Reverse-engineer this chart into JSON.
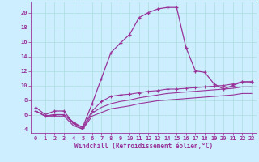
{
  "xlabel": "Windchill (Refroidissement éolien,°C)",
  "background_color": "#cceeff",
  "grid_color": "#aadddd",
  "line_color": "#993399",
  "xlim": [
    -0.5,
    23.5
  ],
  "ylim": [
    3.5,
    21.5
  ],
  "yticks": [
    4,
    6,
    8,
    10,
    12,
    14,
    16,
    18,
    20
  ],
  "xticks": [
    0,
    1,
    2,
    3,
    4,
    5,
    6,
    7,
    8,
    9,
    10,
    11,
    12,
    13,
    14,
    15,
    16,
    17,
    18,
    19,
    20,
    21,
    22,
    23
  ],
  "line1_x": [
    0,
    1,
    2,
    3,
    4,
    5,
    6,
    7,
    8,
    9,
    10,
    11,
    12,
    13,
    14,
    15,
    16,
    17,
    18,
    19,
    20,
    21,
    22,
    23
  ],
  "line1_y": [
    7.0,
    6.0,
    6.5,
    6.5,
    4.8,
    4.3,
    7.5,
    11.0,
    14.5,
    15.8,
    17.0,
    19.3,
    20.0,
    20.5,
    20.7,
    20.7,
    15.2,
    12.0,
    11.8,
    10.2,
    9.5,
    10.0,
    10.5,
    10.5
  ],
  "line2_x": [
    0,
    1,
    2,
    3,
    4,
    5,
    6,
    7,
    8,
    9,
    10,
    11,
    12,
    13,
    14,
    15,
    16,
    17,
    18,
    19,
    20,
    21,
    22,
    23
  ],
  "line2_y": [
    6.5,
    5.8,
    6.0,
    6.0,
    5.0,
    4.2,
    6.5,
    7.8,
    8.5,
    8.7,
    8.8,
    9.0,
    9.2,
    9.3,
    9.5,
    9.5,
    9.6,
    9.7,
    9.8,
    9.9,
    10.0,
    10.2,
    10.5,
    10.5
  ],
  "line3_x": [
    0,
    1,
    2,
    3,
    4,
    5,
    6,
    7,
    8,
    9,
    10,
    11,
    12,
    13,
    14,
    15,
    16,
    17,
    18,
    19,
    20,
    21,
    22,
    23
  ],
  "line3_y": [
    6.5,
    5.8,
    6.0,
    6.0,
    4.8,
    4.0,
    6.2,
    7.0,
    7.5,
    7.8,
    8.0,
    8.3,
    8.5,
    8.7,
    8.9,
    9.0,
    9.1,
    9.2,
    9.3,
    9.4,
    9.5,
    9.6,
    9.8,
    9.8
  ],
  "line4_x": [
    0,
    1,
    2,
    3,
    4,
    5,
    6,
    7,
    8,
    9,
    10,
    11,
    12,
    13,
    14,
    15,
    16,
    17,
    18,
    19,
    20,
    21,
    22,
    23
  ],
  "line4_y": [
    6.5,
    5.8,
    5.8,
    5.8,
    4.5,
    4.0,
    5.8,
    6.3,
    6.8,
    7.0,
    7.2,
    7.5,
    7.7,
    7.9,
    8.0,
    8.1,
    8.2,
    8.3,
    8.4,
    8.5,
    8.6,
    8.7,
    8.9,
    8.9
  ],
  "tick_fontsize": 5,
  "xlabel_fontsize": 5.5
}
